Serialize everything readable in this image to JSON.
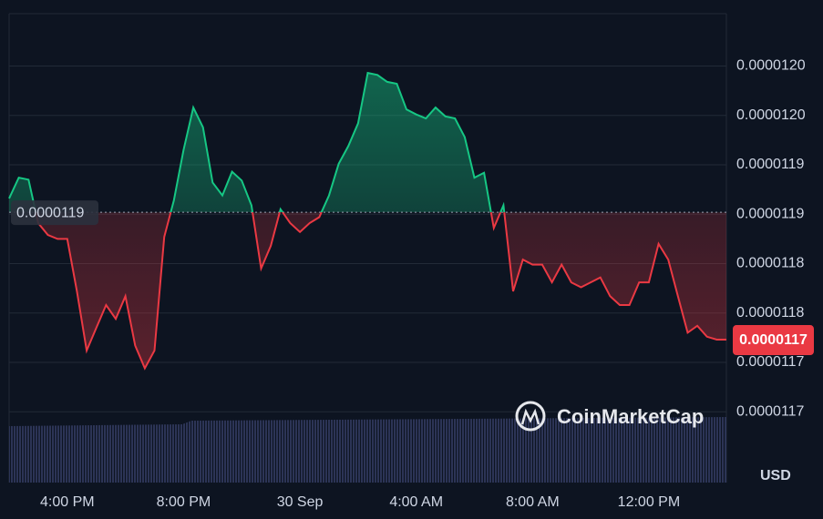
{
  "chart_data": {
    "type": "line",
    "currency": "USD",
    "watermark": "CoinMarketCap",
    "colors": {
      "up": "#16c784",
      "down": "#ea3943"
    },
    "reference": {
      "value": 1.1852e-05,
      "label": "0.0000119"
    },
    "last_value_label": "0.0000117",
    "grid": true,
    "ylim": [
      1.1629e-05,
      1.2053e-05
    ],
    "yticks": [
      {
        "value": 1.2e-05,
        "label": "0.0000120"
      },
      {
        "value": 1.195e-05,
        "label": "0.0000120"
      },
      {
        "value": 1.19e-05,
        "label": "0.0000119"
      },
      {
        "value": 1.185e-05,
        "label": "0.0000119"
      },
      {
        "value": 1.18e-05,
        "label": "0.0000118"
      },
      {
        "value": 1.175e-05,
        "label": "0.0000118"
      },
      {
        "value": 1.17e-05,
        "label": "0.0000117"
      },
      {
        "value": 1.165e-05,
        "label": "0.0000117"
      }
    ],
    "categories": [
      null,
      null,
      null,
      null,
      null,
      null,
      "4:00 PM",
      null,
      null,
      null,
      null,
      null,
      null,
      null,
      null,
      null,
      null,
      null,
      "8:00 PM",
      null,
      null,
      null,
      null,
      null,
      null,
      null,
      null,
      null,
      null,
      null,
      "30 Sep",
      null,
      null,
      null,
      null,
      null,
      null,
      null,
      null,
      null,
      null,
      null,
      "4:00 AM",
      null,
      null,
      null,
      null,
      null,
      null,
      null,
      null,
      null,
      null,
      null,
      "8:00 AM",
      null,
      null,
      null,
      null,
      null,
      null,
      null,
      null,
      null,
      null,
      null,
      "12:00 PM",
      null,
      null,
      null,
      null,
      null,
      null,
      null,
      null
    ],
    "values": [
      1.1866e-05,
      1.1887e-05,
      1.1885e-05,
      1.1841e-05,
      1.1829e-05,
      1.1825e-05,
      1.1825e-05,
      1.1772e-05,
      1.1712e-05,
      1.1735e-05,
      1.1758e-05,
      1.1744e-05,
      1.1767e-05,
      1.1717e-05,
      1.1694e-05,
      1.1712e-05,
      1.1827e-05,
      1.1864e-05,
      1.1915e-05,
      1.1958e-05,
      1.1938e-05,
      1.1882e-05,
      1.1869e-05,
      1.1893e-05,
      1.1884e-05,
      1.1859e-05,
      1.1795e-05,
      1.1818e-05,
      1.1855e-05,
      1.1841e-05,
      1.1832e-05,
      1.1841e-05,
      1.1847e-05,
      1.1869e-05,
      1.1901e-05,
      1.1919e-05,
      1.1942e-05,
      1.1993e-05,
      1.1991e-05,
      1.1984e-05,
      1.1982e-05,
      1.1956e-05,
      1.1951e-05,
      1.1947e-05,
      1.1958e-05,
      1.1949e-05,
      1.1947e-05,
      1.1928e-05,
      1.1887e-05,
      1.1892e-05,
      1.1836e-05,
      1.1859e-05,
      1.1772e-05,
      1.1804e-05,
      1.1799e-05,
      1.1799e-05,
      1.1781e-05,
      1.1799e-05,
      1.1781e-05,
      1.1776e-05,
      1.1781e-05,
      1.1786e-05,
      1.1767e-05,
      1.1758e-05,
      1.1758e-05,
      1.1781e-05,
      1.1781e-05,
      1.182e-05,
      1.1804e-05,
      1.1767e-05,
      1.173e-05,
      1.1737e-05,
      1.1726e-05,
      1.1723e-05,
      1.1723e-05
    ]
  }
}
